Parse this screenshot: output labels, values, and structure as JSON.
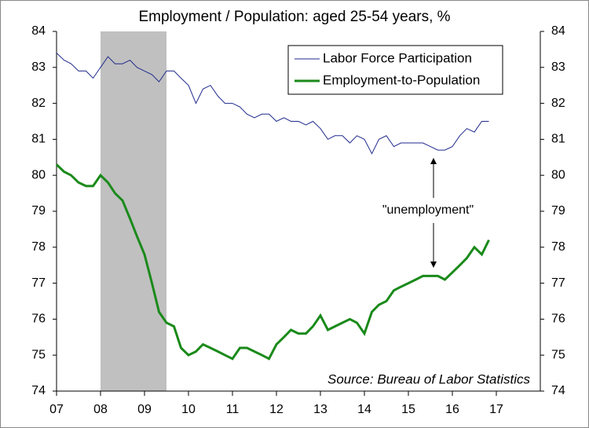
{
  "chart_data": {
    "type": "line",
    "title": "Employment / Population: aged 25-54 years, %",
    "source": "Source: Bureau of Labor Statistics",
    "annotation": "\"unemployment\"",
    "recession": [
      2008,
      2009.5
    ],
    "x": [
      2007,
      2007.17,
      2007.33,
      2007.5,
      2007.67,
      2007.83,
      2008,
      2008.17,
      2008.33,
      2008.5,
      2008.67,
      2008.83,
      2009,
      2009.17,
      2009.33,
      2009.5,
      2009.67,
      2009.83,
      2010,
      2010.17,
      2010.33,
      2010.5,
      2010.67,
      2010.83,
      2011,
      2011.17,
      2011.33,
      2011.5,
      2011.67,
      2011.83,
      2012,
      2012.17,
      2012.33,
      2012.5,
      2012.67,
      2012.83,
      2013,
      2013.17,
      2013.33,
      2013.5,
      2013.67,
      2013.83,
      2014,
      2014.17,
      2014.33,
      2014.5,
      2014.67,
      2014.83,
      2015,
      2015.17,
      2015.33,
      2015.5,
      2015.67,
      2015.83,
      2016,
      2016.17,
      2016.33,
      2016.5,
      2016.67,
      2016.83
    ],
    "series": [
      {
        "name": "Labor Force Participation",
        "color": "#1f2a8c",
        "width": 1,
        "values": [
          83.4,
          83.2,
          83.1,
          82.9,
          82.9,
          82.7,
          83.0,
          83.3,
          83.1,
          83.1,
          83.2,
          83.0,
          82.9,
          82.8,
          82.6,
          82.9,
          82.9,
          82.7,
          82.5,
          82.0,
          82.4,
          82.5,
          82.2,
          82.0,
          82.0,
          81.9,
          81.7,
          81.6,
          81.7,
          81.7,
          81.5,
          81.6,
          81.5,
          81.5,
          81.4,
          81.5,
          81.3,
          81.0,
          81.1,
          81.1,
          80.9,
          81.1,
          81.0,
          80.6,
          81.0,
          81.1,
          80.8,
          80.9,
          80.9,
          80.9,
          80.9,
          80.8,
          80.7,
          80.7,
          80.8,
          81.1,
          81.3,
          81.2,
          81.5,
          81.5
        ]
      },
      {
        "name": "Employment-to-Population",
        "color": "#1a8a1a",
        "width": 3,
        "values": [
          80.3,
          80.1,
          80.0,
          79.8,
          79.7,
          79.7,
          80.0,
          79.8,
          79.5,
          79.3,
          78.8,
          78.3,
          77.8,
          77.0,
          76.2,
          75.9,
          75.8,
          75.2,
          75.0,
          75.1,
          75.3,
          75.2,
          75.1,
          75.0,
          74.9,
          75.2,
          75.2,
          75.1,
          75.0,
          74.9,
          75.3,
          75.5,
          75.7,
          75.6,
          75.6,
          75.8,
          76.1,
          75.7,
          75.8,
          75.9,
          76.0,
          75.9,
          75.6,
          76.2,
          76.4,
          76.5,
          76.8,
          76.9,
          77.0,
          77.1,
          77.2,
          77.2,
          77.2,
          77.1,
          77.3,
          77.5,
          77.7,
          78.0,
          77.8,
          78.2
        ]
      }
    ],
    "xlim": [
      2007,
      2018
    ],
    "xticks": [
      {
        "value": 2007,
        "label": "07"
      },
      {
        "value": 2008,
        "label": "08"
      },
      {
        "value": 2009,
        "label": "09"
      },
      {
        "value": 2010,
        "label": "10"
      },
      {
        "value": 2011,
        "label": "11"
      },
      {
        "value": 2012,
        "label": "12"
      },
      {
        "value": 2013,
        "label": "13"
      },
      {
        "value": 2014,
        "label": "14"
      },
      {
        "value": 2015,
        "label": "15"
      },
      {
        "value": 2016,
        "label": "16"
      },
      {
        "value": 2017,
        "label": "17"
      }
    ],
    "ylim": [
      74,
      84
    ],
    "yticks": [
      74,
      75,
      76,
      77,
      78,
      79,
      80,
      81,
      82,
      83,
      84
    ],
    "y2lim": [
      74,
      84
    ],
    "y2ticks": [
      74,
      75,
      76,
      77,
      78,
      79,
      80,
      81,
      82,
      83,
      84
    ],
    "legend": "top-right"
  }
}
